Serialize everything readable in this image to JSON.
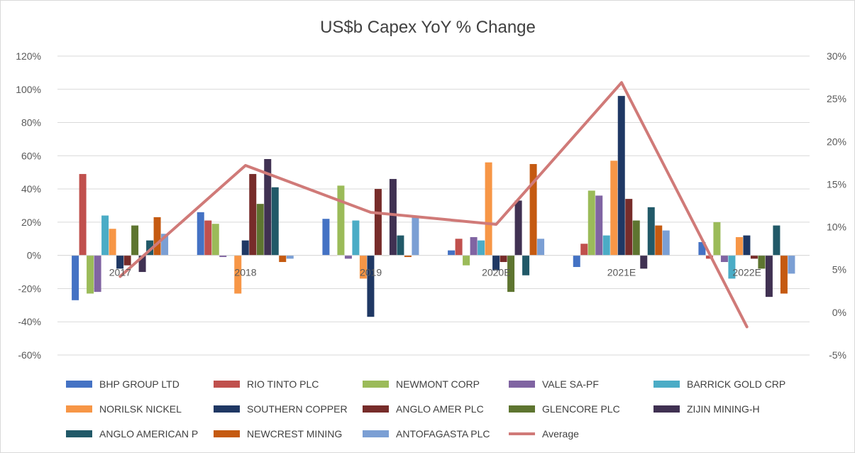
{
  "chart_data": {
    "type": "bar",
    "title": "US$b Capex YoY % Change",
    "xlabel": "",
    "ylabel": "",
    "categories": [
      "2017",
      "2018",
      "2019",
      "2020E",
      "2021E",
      "2022E"
    ],
    "ylim": [
      -60,
      120
    ],
    "y_ticks": [
      "-60%",
      "-40%",
      "-20%",
      "0%",
      "20%",
      "40%",
      "60%",
      "80%",
      "100%",
      "120%"
    ],
    "y2lim": [
      -5,
      30
    ],
    "y2_ticks": [
      "-5%",
      "0%",
      "5%",
      "10%",
      "15%",
      "20%",
      "25%",
      "30%"
    ],
    "grid": true,
    "legend_position": "bottom",
    "series": [
      {
        "name": "BHP GROUP LTD",
        "color": "#4472C4",
        "values": [
          -27,
          26,
          22,
          3,
          -7,
          8
        ]
      },
      {
        "name": "RIO TINTO PLC",
        "color": "#C0504D",
        "values": [
          49,
          21,
          0,
          10,
          7,
          -2
        ]
      },
      {
        "name": "NEWMONT CORP",
        "color": "#9BBB59",
        "values": [
          -23,
          19,
          42,
          -6,
          39,
          20
        ]
      },
      {
        "name": "VALE SA-PF",
        "color": "#8064A2",
        "values": [
          -22,
          -1,
          -2,
          11,
          36,
          -4
        ]
      },
      {
        "name": "BARRICK GOLD CRP",
        "color": "#4BACC6",
        "values": [
          24,
          0,
          21,
          9,
          12,
          -14
        ]
      },
      {
        "name": "NORILSK NICKEL",
        "color": "#F79646",
        "values": [
          16,
          -23,
          -14,
          56,
          57,
          11
        ]
      },
      {
        "name": "SOUTHERN COPPER",
        "color": "#1F3864",
        "values": [
          -8,
          9,
          -37,
          -9,
          96,
          12
        ]
      },
      {
        "name": "ANGLO AMER PLC",
        "color": "#772C2A",
        "values": [
          -6,
          49,
          40,
          -4,
          34,
          -2
        ]
      },
      {
        "name": "GLENCORE PLC",
        "color": "#5E7530",
        "values": [
          18,
          31,
          0,
          -22,
          21,
          -8
        ]
      },
      {
        "name": "ZIJIN MINING-H",
        "color": "#403152",
        "values": [
          -10,
          58,
          46,
          33,
          -8,
          -25
        ]
      },
      {
        "name": "ANGLO AMERICAN P",
        "color": "#215968",
        "values": [
          9,
          41,
          12,
          -12,
          29,
          18
        ]
      },
      {
        "name": "NEWCREST MINING",
        "color": "#C55A11",
        "values": [
          23,
          -4,
          -1,
          55,
          18,
          -23
        ]
      },
      {
        "name": "ANTOFAGASTA PLC",
        "color": "#7B9FD4",
        "values": [
          13,
          -2,
          23,
          10,
          15,
          -11
        ]
      }
    ],
    "line_series": {
      "name": "Average",
      "axis": "secondary",
      "color": "#D07A78",
      "values": [
        4.2,
        17.2,
        11.7,
        10.3,
        26.9,
        -1.7
      ]
    }
  }
}
